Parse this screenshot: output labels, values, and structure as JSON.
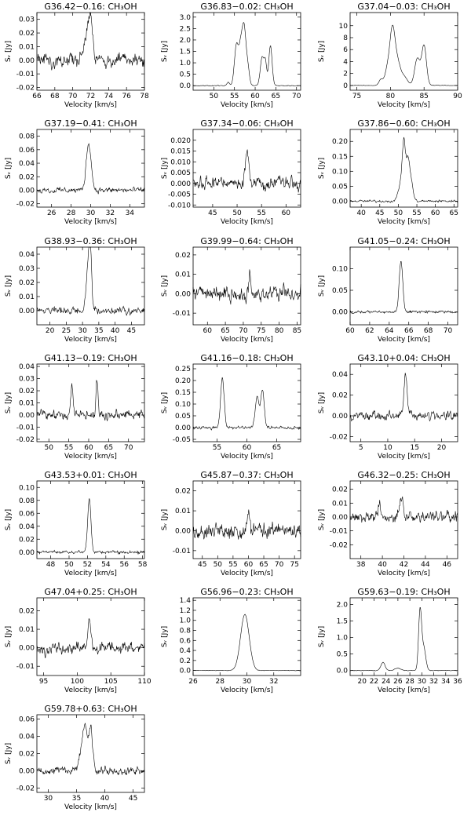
{
  "figure": {
    "title": ""
  },
  "chart_data": [
    {
      "type": "line",
      "title": "G36.42−0.16: CH₃OH",
      "xlabel": "Velocity [km/s]",
      "ylabel": "Sᵥ [Jy]",
      "xlim": [
        66,
        78
      ],
      "ylim": [
        -0.022,
        0.035
      ],
      "xticks": [
        66,
        68,
        70,
        72,
        74,
        76,
        78
      ],
      "yticks": [
        -0.02,
        -0.01,
        0.0,
        0.01,
        0.02,
        0.03
      ],
      "ytick_labels": [
        "-0.02",
        "-0.01",
        "0.00",
        "0.01",
        "0.02",
        "0.03"
      ],
      "noise": 0.006,
      "peaks": [
        [
          71.7,
          0.022,
          0.35
        ],
        [
          72.0,
          0.018,
          0.2
        ]
      ],
      "seed": 1
    },
    {
      "type": "line",
      "title": "G36.83−0.02: CH₃OH",
      "xlabel": "Velocity [km/s]",
      "ylabel": "Sᵥ [Jy]",
      "xlim": [
        45,
        71
      ],
      "ylim": [
        -0.2,
        3.2
      ],
      "xticks": [
        50,
        55,
        60,
        65,
        70
      ],
      "yticks": [
        0.0,
        0.5,
        1.0,
        1.5,
        2.0,
        2.5,
        3.0
      ],
      "ytick_labels": [
        "0.0",
        "0.5",
        "1.0",
        "1.5",
        "2.0",
        "2.5",
        "3.0"
      ],
      "noise": 0.02,
      "peaks": [
        [
          53.5,
          0.15,
          0.3
        ],
        [
          55.5,
          1.8,
          0.5
        ],
        [
          56.5,
          1.4,
          0.4
        ],
        [
          57.3,
          2.5,
          0.45
        ],
        [
          58.2,
          0.8,
          0.4
        ],
        [
          61.7,
          1.25,
          0.45
        ],
        [
          62.5,
          0.9,
          0.3
        ],
        [
          63.7,
          1.75,
          0.4
        ]
      ],
      "seed": 2
    },
    {
      "type": "line",
      "title": "G37.04−0.03: CH₃OH",
      "xlabel": "Velocity [km/s]",
      "ylabel": "Sᵥ [Jy]",
      "xlim": [
        74,
        90
      ],
      "ylim": [
        -0.8,
        12.2
      ],
      "xticks": [
        75,
        80,
        85,
        90
      ],
      "yticks": [
        0,
        2,
        4,
        6,
        8,
        10
      ],
      "ytick_labels": [
        "0",
        "2",
        "4",
        "6",
        "8",
        "10"
      ],
      "noise": 0.05,
      "peaks": [
        [
          78.6,
          1.0,
          0.3
        ],
        [
          79.5,
          2.3,
          0.35
        ],
        [
          80.3,
          9.5,
          0.4
        ],
        [
          81.1,
          3.2,
          0.4
        ],
        [
          82.0,
          1.5,
          0.5
        ],
        [
          84.0,
          4.5,
          0.4
        ],
        [
          85.0,
          6.6,
          0.35
        ]
      ],
      "seed": 3
    },
    {
      "type": "line",
      "title": "G37.19−0.41: CH₃OH",
      "xlabel": "Velocity [km/s]",
      "ylabel": "Sᵥ [Jy]",
      "xlim": [
        24.5,
        35.5
      ],
      "ylim": [
        -0.025,
        0.09
      ],
      "xticks": [
        26,
        28,
        30,
        32,
        34
      ],
      "yticks": [
        -0.02,
        0.0,
        0.02,
        0.04,
        0.06,
        0.08
      ],
      "ytick_labels": [
        "-0.02",
        "0.00",
        "0.02",
        "0.04",
        "0.06",
        "0.08"
      ],
      "noise": 0.005,
      "peaks": [
        [
          29.8,
          0.07,
          0.25
        ]
      ],
      "seed": 4
    },
    {
      "type": "line",
      "title": "G37.34−0.06: CH₃OH",
      "xlabel": "Velocity [km/s]",
      "ylabel": "Sᵥ [Jy]",
      "xlim": [
        41,
        63
      ],
      "ylim": [
        -0.011,
        0.025
      ],
      "xticks": [
        45,
        50,
        55,
        60
      ],
      "yticks": [
        -0.01,
        -0.005,
        0.0,
        0.005,
        0.01,
        0.015,
        0.02
      ],
      "ytick_labels": [
        "-0.010",
        "-0.005",
        "0.000",
        "0.005",
        "0.010",
        "0.015",
        "0.020"
      ],
      "noise": 0.0035,
      "peaks": [
        [
          52.0,
          0.015,
          0.35
        ]
      ],
      "seed": 5
    },
    {
      "type": "line",
      "title": "G37.86−0.60: CH₃OH",
      "xlabel": "Velocity [km/s]",
      "ylabel": "Sᵥ [Jy]",
      "xlim": [
        37,
        66
      ],
      "ylim": [
        -0.02,
        0.24
      ],
      "xticks": [
        40,
        45,
        50,
        55,
        60,
        65
      ],
      "yticks": [
        0.0,
        0.05,
        0.1,
        0.15,
        0.2
      ],
      "ytick_labels": [
        "0.00",
        "0.05",
        "0.10",
        "0.15",
        "0.20"
      ],
      "noise": 0.005,
      "peaks": [
        [
          50.5,
          0.05,
          0.6
        ],
        [
          51.5,
          0.19,
          0.45
        ],
        [
          52.6,
          0.13,
          0.45
        ],
        [
          53.5,
          0.06,
          0.5
        ]
      ],
      "seed": 6
    },
    {
      "type": "line",
      "title": "G38.93−0.36: CH₃OH",
      "xlabel": "Velocity [km/s]",
      "ylabel": "Sᵥ [Jy]",
      "xlim": [
        16,
        49
      ],
      "ylim": [
        -0.01,
        0.045
      ],
      "xticks": [
        20,
        25,
        30,
        35,
        40,
        45
      ],
      "yticks": [
        0.0,
        0.01,
        0.02,
        0.03,
        0.04
      ],
      "ytick_labels": [
        "0.00",
        "0.01",
        "0.02",
        "0.03",
        "0.04"
      ],
      "noise": 0.003,
      "peaks": [
        [
          31.8,
          0.03,
          0.6
        ],
        [
          32.4,
          0.035,
          0.4
        ]
      ],
      "seed": 7
    },
    {
      "type": "line",
      "title": "G39.99−0.64: CH₃OH",
      "xlabel": "Velocity [km/s]",
      "ylabel": "Sᵥ [Jy]",
      "xlim": [
        56,
        86
      ],
      "ylim": [
        -0.016,
        0.024
      ],
      "xticks": [
        60,
        65,
        70,
        75,
        80,
        85
      ],
      "yticks": [
        -0.01,
        0.0,
        0.01,
        0.02
      ],
      "ytick_labels": [
        "-0.01",
        "0.00",
        "0.01",
        "0.02"
      ],
      "noise": 0.005,
      "peaks": [
        [
          71.8,
          0.012,
          0.3
        ]
      ],
      "seed": 8
    },
    {
      "type": "line",
      "title": "G41.05−0.24: CH₃OH",
      "xlabel": "Velocity [km/s]",
      "ylabel": "Sᵥ [Jy]",
      "xlim": [
        60,
        71
      ],
      "ylim": [
        -0.03,
        0.15
      ],
      "xticks": [
        60,
        62,
        64,
        66,
        68,
        70
      ],
      "yticks": [
        0.0,
        0.05,
        0.1
      ],
      "ytick_labels": [
        "0.00",
        "0.05",
        "0.10"
      ],
      "noise": 0.004,
      "peaks": [
        [
          65.2,
          0.12,
          0.18
        ]
      ],
      "seed": 9
    },
    {
      "type": "line",
      "title": "G41.13−0.19: CH₃OH",
      "xlabel": "Velocity [km/s]",
      "ylabel": "Sᵥ [Jy]",
      "xlim": [
        47,
        74
      ],
      "ylim": [
        -0.022,
        0.042
      ],
      "xticks": [
        50,
        55,
        60,
        65,
        70
      ],
      "yticks": [
        -0.02,
        -0.01,
        0.0,
        0.01,
        0.02,
        0.03,
        0.04
      ],
      "ytick_labels": [
        "-0.02",
        "-0.01",
        "0.00",
        "0.01",
        "0.02",
        "0.03",
        "0.04"
      ],
      "noise": 0.005,
      "peaks": [
        [
          55.8,
          0.022,
          0.3
        ],
        [
          62.1,
          0.03,
          0.25
        ]
      ],
      "seed": 10
    },
    {
      "type": "line",
      "title": "G41.16−0.18: CH₃OH",
      "xlabel": "Velocity [km/s]",
      "ylabel": "Sᵥ [Jy]",
      "xlim": [
        51,
        69
      ],
      "ylim": [
        -0.06,
        0.27
      ],
      "xticks": [
        55,
        60,
        65
      ],
      "yticks": [
        -0.05,
        0.0,
        0.05,
        0.1,
        0.15,
        0.2,
        0.25
      ],
      "ytick_labels": [
        "-0.05",
        "0.00",
        "0.05",
        "0.10",
        "0.15",
        "0.20",
        "0.25"
      ],
      "noise": 0.008,
      "peaks": [
        [
          55.9,
          0.21,
          0.3
        ],
        [
          61.7,
          0.13,
          0.3
        ],
        [
          62.6,
          0.16,
          0.3
        ]
      ],
      "seed": 11
    },
    {
      "type": "line",
      "title": "G43.10+0.04: CH₃OH",
      "xlabel": "Velocity [km/s]",
      "ylabel": "Sᵥ [Jy]",
      "xlim": [
        3,
        23
      ],
      "ylim": [
        -0.025,
        0.05
      ],
      "xticks": [
        5,
        10,
        15,
        20
      ],
      "yticks": [
        -0.02,
        0.0,
        0.02,
        0.04
      ],
      "ytick_labels": [
        "-0.02",
        "0.00",
        "0.02",
        "0.04"
      ],
      "noise": 0.005,
      "peaks": [
        [
          13.3,
          0.038,
          0.3
        ]
      ],
      "seed": 12
    },
    {
      "type": "line",
      "title": "G43.53+0.01: CH₃OH",
      "xlabel": "Velocity [km/s]",
      "ylabel": "Sᵥ [Jy]",
      "xlim": [
        46.5,
        58.2
      ],
      "ylim": [
        -0.01,
        0.11
      ],
      "xticks": [
        48,
        50,
        52,
        54,
        56,
        58
      ],
      "yticks": [
        0.0,
        0.02,
        0.04,
        0.06,
        0.08,
        0.1
      ],
      "ytick_labels": [
        "0.00",
        "0.02",
        "0.04",
        "0.06",
        "0.08",
        "0.10"
      ],
      "noise": 0.003,
      "peaks": [
        [
          52.2,
          0.083,
          0.18
        ]
      ],
      "seed": 13
    },
    {
      "type": "line",
      "title": "G45.87−0.37: CH₃OH",
      "xlabel": "Velocity [km/s]",
      "ylabel": "Sᵥ [Jy]",
      "xlim": [
        42,
        77
      ],
      "ylim": [
        -0.014,
        0.025
      ],
      "xticks": [
        45,
        50,
        55,
        60,
        65,
        70,
        75
      ],
      "yticks": [
        -0.01,
        0.0,
        0.01,
        0.02
      ],
      "ytick_labels": [
        "-0.01",
        "0.00",
        "0.01",
        "0.02"
      ],
      "noise": 0.005,
      "peaks": [
        [
          60.0,
          0.01,
          0.35
        ]
      ],
      "seed": 14
    },
    {
      "type": "line",
      "title": "G46.32−0.25: CH₃OH",
      "xlabel": "Velocity [km/s]",
      "ylabel": "Sᵥ [Jy]",
      "xlim": [
        37,
        47
      ],
      "ylim": [
        -0.03,
        0.026
      ],
      "xticks": [
        38,
        40,
        42,
        44,
        46
      ],
      "yticks": [
        -0.02,
        -0.01,
        0.0,
        0.01,
        0.02
      ],
      "ytick_labels": [
        "-0.02",
        "-0.01",
        "0.00",
        "0.01",
        "0.02"
      ],
      "noise": 0.005,
      "peaks": [
        [
          41.8,
          0.014,
          0.15
        ],
        [
          39.7,
          0.008,
          0.2
        ]
      ],
      "seed": 15
    },
    {
      "type": "line",
      "title": "G47.04+0.25: CH₃OH",
      "xlabel": "Velocity [km/s]",
      "ylabel": "Sᵥ [Jy]",
      "xlim": [
        94,
        110
      ],
      "ylim": [
        -0.015,
        0.027
      ],
      "xticks": [
        95,
        100,
        105,
        110
      ],
      "yticks": [
        -0.01,
        0.0,
        0.01,
        0.02
      ],
      "ytick_labels": [
        "-0.01",
        "0.00",
        "0.01",
        "0.02"
      ],
      "noise": 0.004,
      "peaks": [
        [
          101.8,
          0.017,
          0.2
        ]
      ],
      "seed": 16
    },
    {
      "type": "line",
      "title": "G56.96−0.23: CH₃OH",
      "xlabel": "Velocity [km/s]",
      "ylabel": "Sᵥ [Jy]",
      "xlim": [
        26,
        34
      ],
      "ylim": [
        -0.1,
        1.45
      ],
      "xticks": [
        26,
        28,
        30,
        32
      ],
      "yticks": [
        0.0,
        0.2,
        0.4,
        0.6,
        0.8,
        1.0,
        1.2,
        1.4
      ],
      "ytick_labels": [
        "0.0",
        "0.2",
        "0.4",
        "0.6",
        "0.8",
        "1.0",
        "1.2",
        "1.4"
      ],
      "noise": 0.006,
      "peaks": [
        [
          29.85,
          1.12,
          0.32
        ]
      ],
      "seed": 17
    },
    {
      "type": "line",
      "title": "G59.63−0.19: CH₃OH",
      "xlabel": "Velocity [km/s]",
      "ylabel": "Sᵥ [Jy]",
      "xlim": [
        18,
        36
      ],
      "ylim": [
        -0.15,
        2.2
      ],
      "xticks": [
        20,
        22,
        24,
        26,
        28,
        30,
        32,
        34,
        36
      ],
      "yticks": [
        0.0,
        0.5,
        1.0,
        1.5,
        2.0
      ],
      "ytick_labels": [
        "0.0",
        "0.5",
        "1.0",
        "1.5",
        "2.0"
      ],
      "noise": 0.01,
      "peaks": [
        [
          23.5,
          0.25,
          0.35
        ],
        [
          26.0,
          0.07,
          0.5
        ],
        [
          29.7,
          1.75,
          0.25
        ],
        [
          30.3,
          0.7,
          0.35
        ]
      ],
      "seed": 18
    },
    {
      "type": "line",
      "title": "G59.78+0.63: CH₃OH",
      "xlabel": "Velocity [km/s]",
      "ylabel": "Sᵥ [Jy]",
      "xlim": [
        28,
        47
      ],
      "ylim": [
        -0.025,
        0.065
      ],
      "xticks": [
        30,
        35,
        40,
        45
      ],
      "yticks": [
        -0.02,
        0.0,
        0.02,
        0.04,
        0.06
      ],
      "ytick_labels": [
        "-0.02",
        "0.00",
        "0.02",
        "0.04",
        "0.06"
      ],
      "noise": 0.006,
      "peaks": [
        [
          36.5,
          0.04,
          0.4
        ],
        [
          37.5,
          0.048,
          0.35
        ],
        [
          36.0,
          0.02,
          0.6
        ]
      ],
      "seed": 19
    }
  ]
}
